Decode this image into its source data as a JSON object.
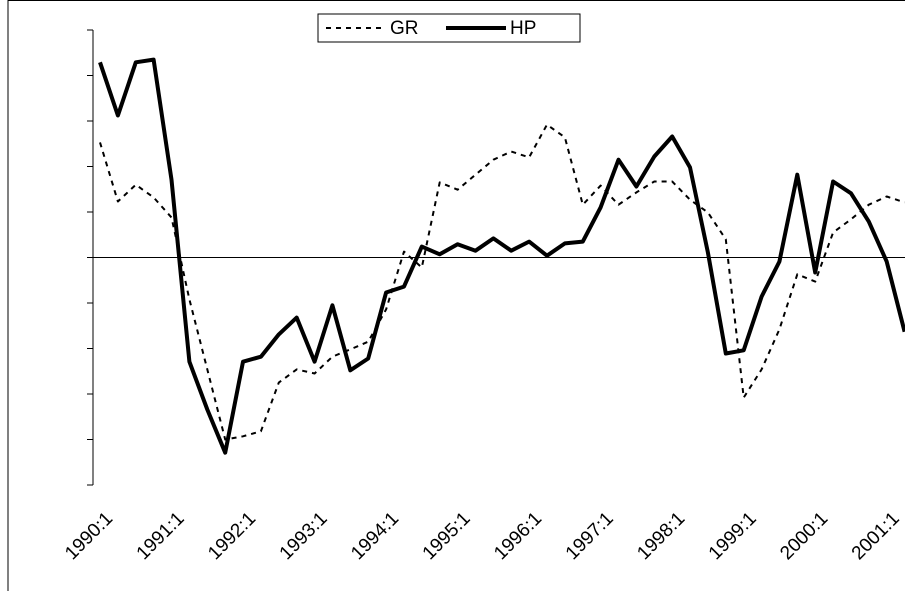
{
  "chart_data": {
    "type": "line",
    "categories": [
      "1990:1",
      null,
      null,
      null,
      "1991:1",
      null,
      null,
      null,
      "1992:1",
      null,
      null,
      null,
      "1993:1",
      null,
      null,
      null,
      "1994:1",
      null,
      null,
      null,
      "1995:1",
      null,
      null,
      null,
      "1996:1",
      null,
      null,
      null,
      "1997:1",
      null,
      null,
      null,
      "1998:1",
      null,
      null,
      null,
      "1999:1",
      null,
      null,
      null,
      "2000:1",
      null,
      null,
      null,
      "2001:1",
      null
    ],
    "series": [
      {
        "name": "GR",
        "color": "#000000",
        "dash": true,
        "values": [
          2.53,
          1.23,
          1.6,
          1.32,
          0.88,
          -0.92,
          -2.46,
          -4.0,
          -3.93,
          -3.82,
          -2.75,
          -2.46,
          -2.55,
          -2.18,
          -2.02,
          -1.85,
          -1.14,
          0.13,
          -0.22,
          1.65,
          1.49,
          1.82,
          2.15,
          2.33,
          2.2,
          2.92,
          2.64,
          1.16,
          1.58,
          1.16,
          1.43,
          1.67,
          1.67,
          1.27,
          0.99,
          0.4,
          -3.08,
          -2.46,
          -1.58,
          -0.37,
          -0.53,
          0.55,
          0.84,
          1.16,
          1.34,
          1.21
        ]
      },
      {
        "name": "HP",
        "color": "#000000",
        "dash": false,
        "values": [
          4.29,
          3.12,
          4.29,
          4.35,
          1.71,
          -2.29,
          -3.34,
          -4.29,
          -2.29,
          -2.18,
          -1.69,
          -1.32,
          -2.29,
          -1.05,
          -2.48,
          -2.22,
          -0.77,
          -0.64,
          0.24,
          0.07,
          0.29,
          0.15,
          0.42,
          0.15,
          0.35,
          0.04,
          0.31,
          0.35,
          1.1,
          2.15,
          1.56,
          2.22,
          2.66,
          1.98,
          0.11,
          -2.11,
          -2.04,
          -0.86,
          -0.09,
          1.82,
          -0.33,
          1.67,
          1.41,
          0.79,
          -0.09,
          -1.63
        ]
      }
    ],
    "ylim": [
      -5,
      5
    ],
    "yticks": [
      -5,
      -4,
      -3,
      -2,
      -1,
      0,
      1,
      2,
      3,
      4,
      5
    ],
    "legend": "top"
  }
}
